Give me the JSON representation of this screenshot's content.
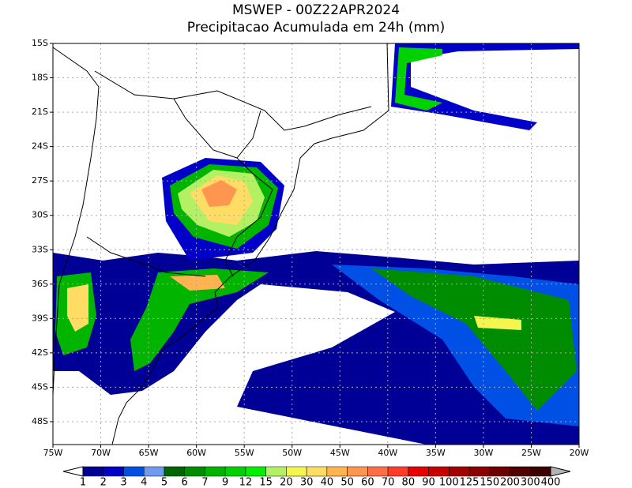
{
  "header": {
    "title": "MSWEP - 00Z22APR2024",
    "subtitle": "Precipitacao Acumulada em 24h (mm)"
  },
  "map": {
    "xlim": [
      -75,
      -20
    ],
    "ylim": [
      -50,
      -15
    ],
    "xticks": [
      {
        "value": -75,
        "label": "75W"
      },
      {
        "value": -70,
        "label": "70W"
      },
      {
        "value": -65,
        "label": "65W"
      },
      {
        "value": -60,
        "label": "60W"
      },
      {
        "value": -55,
        "label": "55W"
      },
      {
        "value": -50,
        "label": "50W"
      },
      {
        "value": -45,
        "label": "45W"
      },
      {
        "value": -40,
        "label": "40W"
      },
      {
        "value": -35,
        "label": "35W"
      },
      {
        "value": -30,
        "label": "30W"
      },
      {
        "value": -25,
        "label": "25W"
      },
      {
        "value": -20,
        "label": "20W"
      }
    ],
    "yticks": [
      {
        "value": -15,
        "label": "15S"
      },
      {
        "value": -18,
        "label": "18S"
      },
      {
        "value": -21,
        "label": "21S"
      },
      {
        "value": -24,
        "label": "24S"
      },
      {
        "value": -27,
        "label": "27S"
      },
      {
        "value": -30,
        "label": "30S"
      },
      {
        "value": -33,
        "label": "33S"
      },
      {
        "value": -36,
        "label": "36S"
      },
      {
        "value": -39,
        "label": "39S"
      },
      {
        "value": -42,
        "label": "42S"
      },
      {
        "value": -45,
        "label": "45S"
      },
      {
        "value": -48,
        "label": "48S"
      }
    ],
    "grid": true
  },
  "colorbar": {
    "labels": [
      "1",
      "2",
      "3",
      "4",
      "5",
      "6",
      "7",
      "9",
      "12",
      "15",
      "20",
      "30",
      "40",
      "50",
      "60",
      "70",
      "80",
      "90",
      "100",
      "125",
      "150",
      "200",
      "300",
      "400"
    ],
    "colors": [
      "#000096",
      "#0000c8",
      "#0050e6",
      "#6e9bf0",
      "#006400",
      "#008c00",
      "#00b400",
      "#00d200",
      "#00f000",
      "#b4f064",
      "#f5f550",
      "#ffdc64",
      "#ffb450",
      "#ff9650",
      "#ff6e46",
      "#ff3c28",
      "#e60000",
      "#c80000",
      "#a50000",
      "#8c0000",
      "#6e0000",
      "#500000",
      "#3c0000"
    ],
    "under_color": "#ffffff",
    "over_color": "#b4b4b4"
  }
}
